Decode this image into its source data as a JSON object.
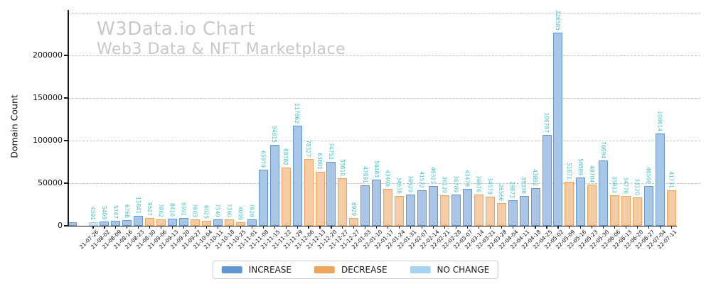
{
  "watermark": {
    "title": "W3Data.io Chart",
    "subtitle": "Web3 Data & NFT Marketplace"
  },
  "y_axis": {
    "label": "Domain Count",
    "ticks": [
      0,
      50000,
      100000,
      150000,
      200000
    ]
  },
  "legend": {
    "items": [
      {
        "label": "INCREASE",
        "color": "#6397d4"
      },
      {
        "label": "DECREASE",
        "color": "#f0a35c"
      },
      {
        "label": "NO CHANGE",
        "color": "#a6d2f3"
      }
    ]
  },
  "chart_data": {
    "type": "bar",
    "title": "W3Data.io Chart",
    "subtitle": "Web3 Data & NFT Marketplace",
    "xlabel": "",
    "ylabel": "Domain Count",
    "ylim": [
      0,
      250000
    ],
    "y_gridlines": [
      50000,
      100000,
      150000,
      200000,
      250000
    ],
    "grid": "horizontal-dashed",
    "legend_position": "bottom-center",
    "categories": [
      "21-07-26",
      "21-08-02",
      "21-08-09",
      "21-08-16",
      "21-08-23",
      "21-08-30",
      "21-09-06",
      "21-09-13",
      "21-09-20",
      "21-09-27",
      "21-10-04",
      "21-10-11",
      "21-10-18",
      "21-10-25",
      "21-11-01",
      "21-11-08",
      "21-11-15",
      "21-11-22",
      "21-11-29",
      "21-12-06",
      "21-12-13",
      "21-12-20",
      "21-12-27",
      "21-12-27",
      "22-01-03",
      "22-01-10",
      "22-01-17",
      "22-01-24",
      "22-01-31",
      "22-02-07",
      "22-02-14",
      "22-02-21",
      "22-02-28",
      "22-03-07",
      "22-03-14",
      "22-03-21",
      "22-03-28",
      "22-04-04",
      "22-04-11",
      "22-04-18",
      "22-04-25",
      "22-05-02",
      "22-05-09",
      "22-05-16",
      "22-05-23",
      "22-05-30",
      "22-06-06",
      "22-06-13",
      "22-06-20",
      "22-06-27",
      "22-07-04",
      "22-07-11"
    ],
    "values": [
      4391,
      5409,
      5747,
      6768,
      11841,
      9527,
      7862,
      8410,
      9391,
      7603,
      6025,
      7549,
      7390,
      4099,
      7628,
      65979,
      94815,
      68382,
      117862,
      78327,
      63601,
      74752,
      55610,
      8929,
      47891,
      54483,
      43499,
      34638,
      36929,
      41522,
      46321,
      36129,
      36709,
      43478,
      36876,
      34578,
      26566,
      29873,
      35336,
      43882,
      106787,
      226585,
      51871,
      56889,
      48704,
      76694,
      35813,
      34776,
      33120,
      46590,
      108614,
      41731
    ],
    "change_type": [
      "no_change",
      "increase",
      "increase",
      "increase",
      "increase",
      "decrease",
      "decrease",
      "increase",
      "increase",
      "decrease",
      "decrease",
      "increase",
      "decrease",
      "decrease",
      "increase",
      "increase",
      "increase",
      "decrease",
      "increase",
      "decrease",
      "decrease",
      "increase",
      "decrease",
      "decrease",
      "increase",
      "increase",
      "decrease",
      "decrease",
      "increase",
      "increase",
      "increase",
      "decrease",
      "increase",
      "increase",
      "decrease",
      "decrease",
      "decrease",
      "increase",
      "increase",
      "increase",
      "increase",
      "increase",
      "decrease",
      "increase",
      "decrease",
      "increase",
      "decrease",
      "decrease",
      "decrease",
      "increase",
      "increase",
      "decrease"
    ],
    "stray_bar": {
      "approx_value": 4391,
      "type": "increase",
      "label_shown": false,
      "position": "left-of-first-tick"
    },
    "series_legend": [
      "INCREASE",
      "DECREASE",
      "NO CHANGE"
    ],
    "colors": {
      "increase_edge": "#6397d4",
      "increase_fill": "#a9c6e7",
      "decrease_edge": "#f0a35c",
      "decrease_fill": "#f7cca5",
      "no_change_edge": "#a6d2f3",
      "no_change_fill": "#cee6f8",
      "value_label": "#40c4c4",
      "watermark": "#c8c8c8",
      "grid": "#c3c3c3"
    }
  }
}
